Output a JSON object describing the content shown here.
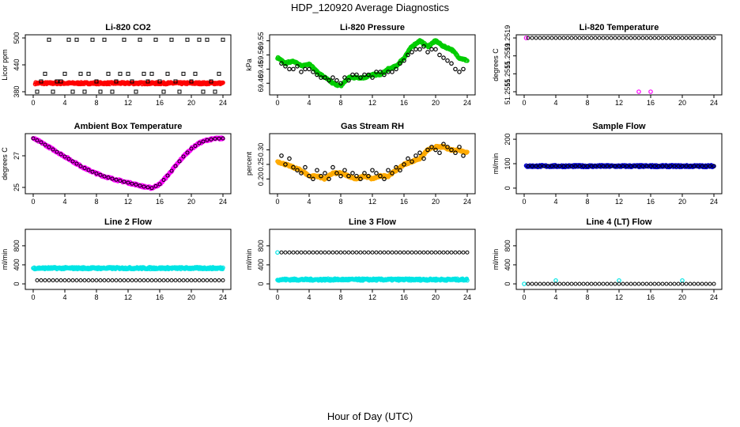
{
  "figure": {
    "title": "HDP_120920  Average Diagnostics",
    "xlabel": "Hour of Day (UTC)"
  },
  "chart_data": [
    {
      "type": "scatter",
      "title": "Li-820 CO2",
      "ylabel": "Licor ppm",
      "xlim": [
        0,
        24
      ],
      "ylim": [
        380,
        500
      ],
      "xticks": [
        "0",
        "4",
        "8",
        "12",
        "16",
        "20",
        "24"
      ],
      "yticks": [
        "380",
        "440",
        "500"
      ],
      "series": [
        {
          "color": "#ff0000",
          "marker": "dense",
          "x": [
            0.25,
            24.0
          ],
          "y": [
            399,
            399
          ]
        },
        {
          "color": "#000000",
          "marker": "square",
          "x": [
            0.5,
            1.0,
            1.5,
            2.0,
            2.5,
            3.0,
            3.5,
            4.0,
            4.5,
            5.0,
            5.5,
            6.0,
            6.5,
            7.0,
            7.5,
            8.0,
            8.5,
            9.0,
            9.5,
            10.0,
            10.5,
            11.0,
            11.5,
            12.0,
            12.5,
            13.0,
            13.5,
            14.0,
            14.5,
            15.0,
            15.5,
            16.0,
            16.5,
            17.0,
            17.5,
            18.0,
            18.5,
            19.0,
            19.5,
            20.0,
            20.5,
            21.0,
            21.5,
            22.0,
            22.5,
            23.0,
            23.5,
            24.0
          ],
          "y": [
            380,
            403,
            420,
            496,
            380,
            403,
            403,
            420,
            496,
            380,
            496,
            420,
            380,
            420,
            496,
            403,
            380,
            496,
            420,
            380,
            403,
            420,
            496,
            420,
            403,
            380,
            496,
            420,
            403,
            420,
            496,
            403,
            380,
            420,
            496,
            403,
            380,
            420,
            496,
            403,
            420,
            496,
            380,
            496,
            403,
            380,
            420,
            496
          ]
        }
      ]
    },
    {
      "type": "scatter",
      "title": "Li-820 Pressure",
      "ylabel": "kPa",
      "xlim": [
        0,
        24
      ],
      "ylim": [
        69.37,
        69.56
      ],
      "xticks": [
        "0",
        "4",
        "8",
        "12",
        "16",
        "20",
        "24"
      ],
      "yticks": [
        "69.40",
        "69.45",
        "69.50",
        "69.55"
      ],
      "series": [
        {
          "color": "#00cc00",
          "marker": "dense",
          "x": [
            0,
            1,
            2,
            3,
            4,
            5,
            6,
            7,
            8,
            9,
            10,
            11,
            12,
            13,
            14,
            15,
            16,
            17,
            18,
            19,
            20,
            21,
            22,
            23,
            24
          ],
          "y": [
            69.49,
            69.47,
            69.48,
            69.46,
            69.47,
            69.44,
            69.42,
            69.4,
            69.39,
            69.42,
            69.42,
            69.42,
            69.43,
            69.43,
            69.45,
            69.46,
            69.49,
            69.53,
            69.55,
            69.53,
            69.55,
            69.53,
            69.52,
            69.49,
            69.48
          ]
        },
        {
          "color": "#000000",
          "marker": "circle",
          "x": [
            0.5,
            1.0,
            1.5,
            2.0,
            2.5,
            3.0,
            3.5,
            4.0,
            4.5,
            5.0,
            5.5,
            6.0,
            6.5,
            7.0,
            7.5,
            8.0,
            8.5,
            9.0,
            9.5,
            10.0,
            10.5,
            11.0,
            11.5,
            12.0,
            12.5,
            13.0,
            13.5,
            14.0,
            14.5,
            15.0,
            15.5,
            16.0,
            16.5,
            17.0,
            17.5,
            18.0,
            18.5,
            19.0,
            19.5,
            20.0,
            20.5,
            21.0,
            21.5,
            22.0,
            22.5,
            23.0,
            23.5
          ],
          "y": [
            69.47,
            69.46,
            69.45,
            69.45,
            69.46,
            69.44,
            69.45,
            69.45,
            69.44,
            69.43,
            69.42,
            69.42,
            69.41,
            69.42,
            69.41,
            69.4,
            69.42,
            69.41,
            69.43,
            69.43,
            69.42,
            69.43,
            69.43,
            69.42,
            69.44,
            69.44,
            69.43,
            69.44,
            69.44,
            69.45,
            69.47,
            69.48,
            69.5,
            69.51,
            69.52,
            69.52,
            69.53,
            69.51,
            69.52,
            69.52,
            69.5,
            69.49,
            69.48,
            69.47,
            69.45,
            69.44,
            69.45
          ]
        }
      ]
    },
    {
      "type": "scatter",
      "title": "Li-820 Temperature",
      "ylabel": "degrees C",
      "xlim": [
        0,
        24
      ],
      "ylim": [
        51.2514,
        51.2519
      ],
      "xticks": [
        "0",
        "4",
        "8",
        "12",
        "16",
        "20",
        "24"
      ],
      "yticks": [
        "51.2515",
        "51.2515",
        "51.2519",
        "51.2519"
      ],
      "series": [
        {
          "color": "#ff00ff",
          "marker": "circle",
          "x": [
            0.25,
            14.5,
            16.0
          ],
          "y": [
            51.2519,
            51.2514,
            51.2514
          ]
        },
        {
          "color": "#000000",
          "marker": "circle-row",
          "x": [
            0.5,
            24.0
          ],
          "y": [
            51.2519,
            51.2519
          ]
        }
      ]
    },
    {
      "type": "scatter",
      "title": "Ambient Box Temperature",
      "ylabel": "degrees C",
      "xlim": [
        0,
        24
      ],
      "ylim": [
        24.8,
        28.2
      ],
      "xticks": [
        "0",
        "4",
        "8",
        "12",
        "16",
        "20",
        "24"
      ],
      "yticks": [
        "25",
        "27"
      ],
      "series": [
        {
          "color": "#ff00ff",
          "marker": "dense",
          "x": [
            0,
            1,
            2,
            3,
            4,
            5,
            6,
            7,
            8,
            9,
            10,
            11,
            12,
            13,
            14,
            15,
            16,
            17,
            18,
            19,
            20,
            21,
            22,
            23,
            24
          ],
          "y": [
            28.1,
            27.85,
            27.55,
            27.25,
            26.95,
            26.65,
            26.35,
            26.1,
            25.88,
            25.7,
            25.55,
            25.42,
            25.3,
            25.18,
            25.05,
            24.96,
            25.2,
            25.75,
            26.35,
            26.95,
            27.45,
            27.8,
            28.0,
            28.08,
            28.1
          ]
        },
        {
          "color": "#000000",
          "marker": "circle-curve",
          "x": [
            0,
            1,
            2,
            3,
            4,
            5,
            6,
            7,
            8,
            9,
            10,
            11,
            12,
            13,
            14,
            15,
            16,
            17,
            18,
            19,
            20,
            21,
            22,
            23,
            24
          ],
          "y": [
            28.1,
            27.85,
            27.55,
            27.25,
            26.95,
            26.65,
            26.35,
            26.1,
            25.88,
            25.7,
            25.55,
            25.42,
            25.3,
            25.18,
            25.05,
            24.96,
            25.2,
            25.75,
            26.35,
            26.95,
            27.45,
            27.8,
            28.0,
            28.08,
            28.1
          ]
        }
      ]
    },
    {
      "type": "scatter",
      "title": "Gas Stream RH",
      "ylabel": "percent",
      "xlim": [
        0,
        24
      ],
      "ylim": [
        0.16,
        0.345
      ],
      "xticks": [
        "0",
        "4",
        "8",
        "12",
        "16",
        "20",
        "24"
      ],
      "yticks": [
        "0.20",
        "0.25",
        "0.30"
      ],
      "series": [
        {
          "color": "#ffaa00",
          "marker": "dense",
          "x": [
            0,
            1,
            2,
            3,
            4,
            5,
            6,
            7,
            8,
            9,
            10,
            11,
            12,
            13,
            14,
            15,
            16,
            17,
            18,
            19,
            20,
            21,
            22,
            23,
            24
          ],
          "y": [
            0.26,
            0.25,
            0.24,
            0.23,
            0.21,
            0.21,
            0.2,
            0.22,
            0.22,
            0.21,
            0.2,
            0.21,
            0.2,
            0.21,
            0.21,
            0.23,
            0.25,
            0.26,
            0.27,
            0.3,
            0.31,
            0.31,
            0.3,
            0.3,
            0.29
          ]
        },
        {
          "color": "#000000",
          "marker": "circle",
          "x": [
            0.5,
            1.0,
            1.5,
            2.0,
            2.5,
            3.0,
            3.5,
            4.0,
            4.5,
            5.0,
            5.5,
            6.0,
            6.5,
            7.0,
            7.5,
            8.0,
            8.5,
            9.0,
            9.5,
            10.0,
            10.5,
            11.0,
            11.5,
            12.0,
            12.5,
            13.0,
            13.5,
            14.0,
            14.5,
            15.0,
            15.5,
            16.0,
            16.5,
            17.0,
            17.5,
            18.0,
            18.5,
            19.0,
            19.5,
            20.0,
            20.5,
            21.0,
            21.5,
            22.0,
            22.5,
            23.0,
            23.5
          ],
          "y": [
            0.28,
            0.25,
            0.27,
            0.24,
            0.23,
            0.22,
            0.24,
            0.21,
            0.2,
            0.23,
            0.21,
            0.22,
            0.2,
            0.24,
            0.22,
            0.21,
            0.23,
            0.21,
            0.22,
            0.21,
            0.2,
            0.22,
            0.21,
            0.23,
            0.22,
            0.21,
            0.2,
            0.23,
            0.22,
            0.24,
            0.23,
            0.25,
            0.27,
            0.26,
            0.28,
            0.29,
            0.27,
            0.3,
            0.31,
            0.3,
            0.29,
            0.32,
            0.31,
            0.3,
            0.29,
            0.31,
            0.28
          ]
        }
      ]
    },
    {
      "type": "scatter",
      "title": "Sample Flow",
      "ylabel": "ml/min",
      "xlim": [
        0,
        24
      ],
      "ylim": [
        -10,
        210
      ],
      "xticks": [
        "0",
        "4",
        "8",
        "12",
        "16",
        "20",
        "24"
      ],
      "yticks": [
        "0",
        "100",
        "200"
      ],
      "series": [
        {
          "color": "#0000cc",
          "marker": "dense",
          "x": [
            0.25,
            24.0
          ],
          "y": [
            90,
            90
          ]
        },
        {
          "color": "#000000",
          "marker": "circle-row",
          "x": [
            0.5,
            24.0
          ],
          "y": [
            90,
            90
          ]
        }
      ]
    },
    {
      "type": "scatter",
      "title": "Line 2 Flow",
      "ylabel": "ml/min",
      "xlim": [
        0,
        24
      ],
      "ylim": [
        -50,
        1080
      ],
      "xticks": [
        "0",
        "4",
        "8",
        "12",
        "16",
        "20",
        "24"
      ],
      "yticks": [
        "0",
        "400",
        "800"
      ],
      "series": [
        {
          "color": "#00e5e5",
          "marker": "dense",
          "x": [
            0.0,
            24.0
          ],
          "y": [
            330,
            330
          ]
        },
        {
          "color": "#000000",
          "marker": "circle-row",
          "x": [
            0.5,
            24.0
          ],
          "y": [
            75,
            75
          ]
        }
      ]
    },
    {
      "type": "scatter",
      "title": "Line 3 Flow",
      "ylabel": "ml/min",
      "xlim": [
        0,
        24
      ],
      "ylim": [
        -50,
        1080
      ],
      "xticks": [
        "0",
        "4",
        "8",
        "12",
        "16",
        "20",
        "24"
      ],
      "yticks": [
        "0",
        "400",
        "800"
      ],
      "series": [
        {
          "color": "#00e5e5",
          "marker": "dense",
          "x": [
            0.0,
            24.0
          ],
          "y": [
            90,
            90
          ]
        },
        {
          "color": "#00e5e5",
          "marker": "circle",
          "x": [
            0.0
          ],
          "y": [
            660
          ]
        },
        {
          "color": "#000000",
          "marker": "circle-row",
          "x": [
            0.5,
            24.0
          ],
          "y": [
            660,
            660
          ]
        }
      ]
    },
    {
      "type": "scatter",
      "title": "Line 4 (LT) Flow",
      "ylabel": "ml/min",
      "xlim": [
        0,
        24
      ],
      "ylim": [
        -50,
        1080
      ],
      "xticks": [
        "0",
        "4",
        "8",
        "12",
        "16",
        "20",
        "24"
      ],
      "yticks": [
        "0",
        "400",
        "800"
      ],
      "series": [
        {
          "color": "#00e5e5",
          "marker": "circle",
          "x": [
            0.0,
            4.0,
            12.0,
            20.0
          ],
          "y": [
            0,
            70,
            70,
            70
          ]
        },
        {
          "color": "#000000",
          "marker": "circle-row",
          "x": [
            0.5,
            24.0
          ],
          "y": [
            0,
            0
          ]
        }
      ]
    }
  ]
}
